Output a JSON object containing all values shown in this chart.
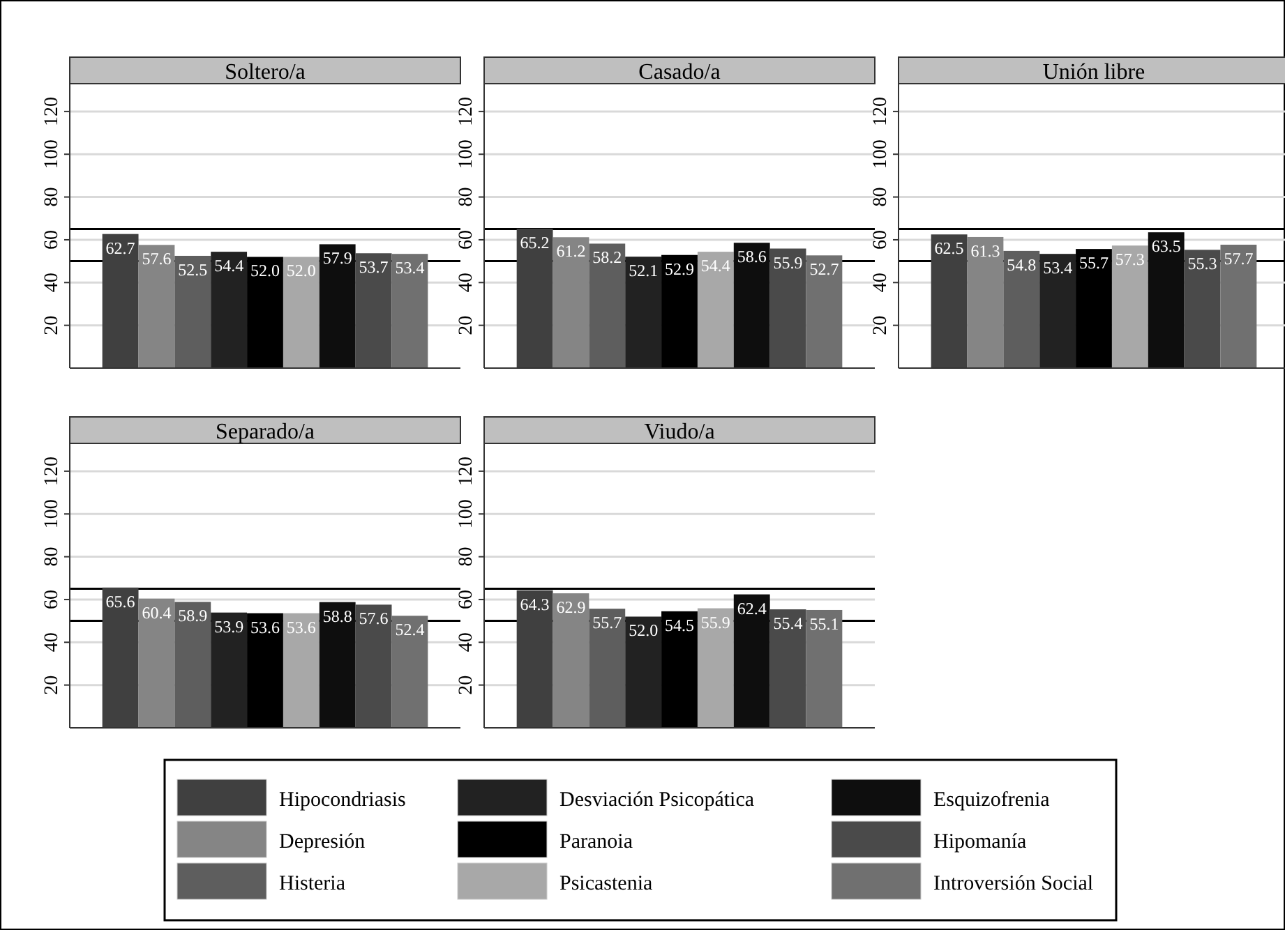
{
  "chart_data": [
    {
      "type": "bar",
      "title": "Soltero/a",
      "categories": [
        null
      ],
      "ylim": [
        0,
        133
      ],
      "yticks": [
        20,
        40,
        60,
        80,
        100,
        120
      ],
      "grid": "y",
      "legend": "bottom",
      "tick_labels": "y",
      "ref_lines": [
        {
          "axis": "y",
          "value": 50,
          "color": "#000000"
        },
        {
          "axis": "y",
          "value": 65,
          "color": "#000000"
        }
      ],
      "series": [
        {
          "name": "Hipocondriasis",
          "color": "#404040",
          "values": [
            62.7
          ],
          "value_labels": [
            "62.7"
          ]
        },
        {
          "name": "Depresión",
          "color": "#858585",
          "values": [
            57.6
          ],
          "value_labels": [
            "57.6"
          ]
        },
        {
          "name": "Histeria",
          "color": "#5e5e5e",
          "values": [
            52.5
          ],
          "value_labels": [
            "52.5"
          ]
        },
        {
          "name": "Desviación Psicopática",
          "color": "#222222",
          "values": [
            54.4
          ],
          "value_labels": [
            "54.4"
          ]
        },
        {
          "name": "Paranoia",
          "color": "#000000",
          "values": [
            52.0
          ],
          "value_labels": [
            "52.0"
          ]
        },
        {
          "name": "Psicastenia",
          "color": "#a8a8a8",
          "values": [
            52.0
          ],
          "value_labels": [
            "52.0"
          ]
        },
        {
          "name": "Esquizofrenia",
          "color": "#0e0e0e",
          "values": [
            57.9
          ],
          "value_labels": [
            "57.9"
          ]
        },
        {
          "name": "Hipomanía",
          "color": "#4a4a4a",
          "values": [
            53.7
          ],
          "value_labels": [
            "53.7"
          ]
        },
        {
          "name": "Introversión Social",
          "color": "#707070",
          "values": [
            53.4
          ],
          "value_labels": [
            "53.4"
          ]
        }
      ]
    },
    {
      "type": "bar",
      "title": "Casado/a",
      "categories": [
        null
      ],
      "ylim": [
        0,
        133
      ],
      "yticks": [
        20,
        40,
        60,
        80,
        100,
        120
      ],
      "grid": "y",
      "tick_labels": "y",
      "ref_lines": [
        {
          "axis": "y",
          "value": 50,
          "color": "#000000"
        },
        {
          "axis": "y",
          "value": 65,
          "color": "#000000"
        }
      ],
      "series": [
        {
          "color": "#404040",
          "values": [
            65.2
          ],
          "value_labels": [
            "65.2"
          ]
        },
        {
          "color": "#858585",
          "values": [
            61.2
          ],
          "value_labels": [
            "61.2"
          ]
        },
        {
          "color": "#5e5e5e",
          "values": [
            58.2
          ],
          "value_labels": [
            "58.2"
          ]
        },
        {
          "color": "#222222",
          "values": [
            52.1
          ],
          "value_labels": [
            "52.1"
          ]
        },
        {
          "color": "#000000",
          "values": [
            52.9
          ],
          "value_labels": [
            "52.9"
          ]
        },
        {
          "color": "#a8a8a8",
          "values": [
            54.4
          ],
          "value_labels": [
            "54.4"
          ]
        },
        {
          "color": "#0e0e0e",
          "values": [
            58.6
          ],
          "value_labels": [
            "58.6"
          ]
        },
        {
          "color": "#4a4a4a",
          "values": [
            55.9
          ],
          "value_labels": [
            "55.9"
          ]
        },
        {
          "color": "#707070",
          "values": [
            52.7
          ],
          "value_labels": [
            "52.7"
          ]
        }
      ]
    },
    {
      "type": "bar",
      "title": "Unión libre",
      "categories": [
        null
      ],
      "ylim": [
        0,
        133
      ],
      "yticks": [
        20,
        40,
        60,
        80,
        100,
        120
      ],
      "grid": "y",
      "tick_labels": "y",
      "ref_lines": [
        {
          "axis": "y",
          "value": 50,
          "color": "#000000"
        },
        {
          "axis": "y",
          "value": 65,
          "color": "#000000"
        }
      ],
      "series": [
        {
          "color": "#404040",
          "values": [
            62.5
          ],
          "value_labels": [
            "62.5"
          ]
        },
        {
          "color": "#858585",
          "values": [
            61.3
          ],
          "value_labels": [
            "61.3"
          ]
        },
        {
          "color": "#5e5e5e",
          "values": [
            54.8
          ],
          "value_labels": [
            "54.8"
          ]
        },
        {
          "color": "#222222",
          "values": [
            53.4
          ],
          "value_labels": [
            "53.4"
          ]
        },
        {
          "color": "#000000",
          "values": [
            55.7
          ],
          "value_labels": [
            "55.7"
          ]
        },
        {
          "color": "#a8a8a8",
          "values": [
            57.3
          ],
          "value_labels": [
            "57.3"
          ]
        },
        {
          "color": "#0e0e0e",
          "values": [
            63.5
          ],
          "value_labels": [
            "63.5"
          ]
        },
        {
          "color": "#4a4a4a",
          "values": [
            55.3
          ],
          "value_labels": [
            "55.3"
          ]
        },
        {
          "color": "#707070",
          "values": [
            57.7
          ],
          "value_labels": [
            "57.7"
          ]
        }
      ]
    },
    {
      "type": "bar",
      "title": "Separado/a",
      "categories": [
        null
      ],
      "ylim": [
        0,
        133
      ],
      "yticks": [
        20,
        40,
        60,
        80,
        100,
        120
      ],
      "grid": "y",
      "tick_labels": "y",
      "ref_lines": [
        {
          "axis": "y",
          "value": 50,
          "color": "#000000"
        },
        {
          "axis": "y",
          "value": 65,
          "color": "#000000"
        }
      ],
      "series": [
        {
          "color": "#404040",
          "values": [
            65.6
          ],
          "value_labels": [
            "65.6"
          ]
        },
        {
          "color": "#858585",
          "values": [
            60.4
          ],
          "value_labels": [
            "60.4"
          ]
        },
        {
          "color": "#5e5e5e",
          "values": [
            58.9
          ],
          "value_labels": [
            "58.9"
          ]
        },
        {
          "color": "#222222",
          "values": [
            53.9
          ],
          "value_labels": [
            "53.9"
          ]
        },
        {
          "color": "#000000",
          "values": [
            53.6
          ],
          "value_labels": [
            "53.6"
          ]
        },
        {
          "color": "#a8a8a8",
          "values": [
            53.6
          ],
          "value_labels": [
            "53.6"
          ]
        },
        {
          "color": "#0e0e0e",
          "values": [
            58.8
          ],
          "value_labels": [
            "58.8"
          ]
        },
        {
          "color": "#4a4a4a",
          "values": [
            57.6
          ],
          "value_labels": [
            "57.6"
          ]
        },
        {
          "color": "#707070",
          "values": [
            52.4
          ],
          "value_labels": [
            "52.4"
          ]
        }
      ]
    },
    {
      "type": "bar",
      "title": "Viudo/a",
      "categories": [
        null
      ],
      "ylim": [
        0,
        133
      ],
      "yticks": [
        20,
        40,
        60,
        80,
        100,
        120
      ],
      "grid": "y",
      "tick_labels": "y",
      "ref_lines": [
        {
          "axis": "y",
          "value": 50,
          "color": "#000000"
        },
        {
          "axis": "y",
          "value": 65,
          "color": "#000000"
        }
      ],
      "series": [
        {
          "color": "#404040",
          "values": [
            64.3
          ],
          "value_labels": [
            "64.3"
          ]
        },
        {
          "color": "#858585",
          "values": [
            62.9
          ],
          "value_labels": [
            "62.9"
          ]
        },
        {
          "color": "#5e5e5e",
          "values": [
            55.7
          ],
          "value_labels": [
            "55.7"
          ]
        },
        {
          "color": "#222222",
          "values": [
            52.0
          ],
          "value_labels": [
            "52.0"
          ]
        },
        {
          "color": "#000000",
          "values": [
            54.5
          ],
          "value_labels": [
            "54.5"
          ]
        },
        {
          "color": "#a8a8a8",
          "values": [
            55.9
          ],
          "value_labels": [
            "55.9"
          ]
        },
        {
          "color": "#0e0e0e",
          "values": [
            62.4
          ],
          "value_labels": [
            "62.4"
          ]
        },
        {
          "color": "#4a4a4a",
          "values": [
            55.4
          ],
          "value_labels": [
            "55.4"
          ]
        },
        {
          "color": "#707070",
          "values": [
            55.1
          ],
          "value_labels": [
            "55.1"
          ]
        }
      ]
    }
  ]
}
